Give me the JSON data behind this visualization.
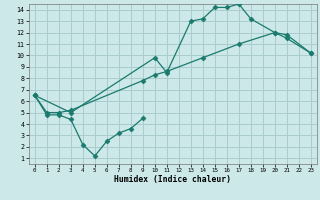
{
  "xlabel": "Humidex (Indice chaleur)",
  "bg_color": "#cce8e8",
  "grid_color": "#aacccc",
  "line_color": "#1a7a6e",
  "xlim": [
    -0.5,
    23.5
  ],
  "ylim": [
    0.5,
    14.5
  ],
  "xticks": [
    0,
    1,
    2,
    3,
    4,
    5,
    6,
    7,
    8,
    9,
    10,
    11,
    12,
    13,
    14,
    15,
    16,
    17,
    18,
    19,
    20,
    21,
    22,
    23
  ],
  "yticks": [
    1,
    2,
    3,
    4,
    5,
    6,
    7,
    8,
    9,
    10,
    11,
    12,
    13,
    14
  ],
  "line1_x": [
    0,
    1,
    2,
    3,
    4,
    5,
    6,
    7,
    8,
    9
  ],
  "line1_y": [
    6.5,
    4.8,
    4.8,
    4.4,
    2.2,
    1.2,
    2.5,
    3.2,
    3.6,
    4.5
  ],
  "line2_x": [
    0,
    1,
    2,
    3,
    9,
    10,
    11,
    14,
    17,
    20,
    21,
    23
  ],
  "line2_y": [
    6.5,
    5.0,
    5.0,
    5.2,
    7.8,
    8.3,
    8.6,
    9.8,
    11.0,
    12.0,
    11.5,
    10.2
  ],
  "line3_x": [
    0,
    3,
    10,
    11,
    13,
    14,
    15,
    16,
    17,
    18,
    20,
    21,
    23
  ],
  "line3_y": [
    6.5,
    5.0,
    9.8,
    8.5,
    13.0,
    13.2,
    14.2,
    14.2,
    14.5,
    13.2,
    12.0,
    11.8,
    10.2
  ]
}
